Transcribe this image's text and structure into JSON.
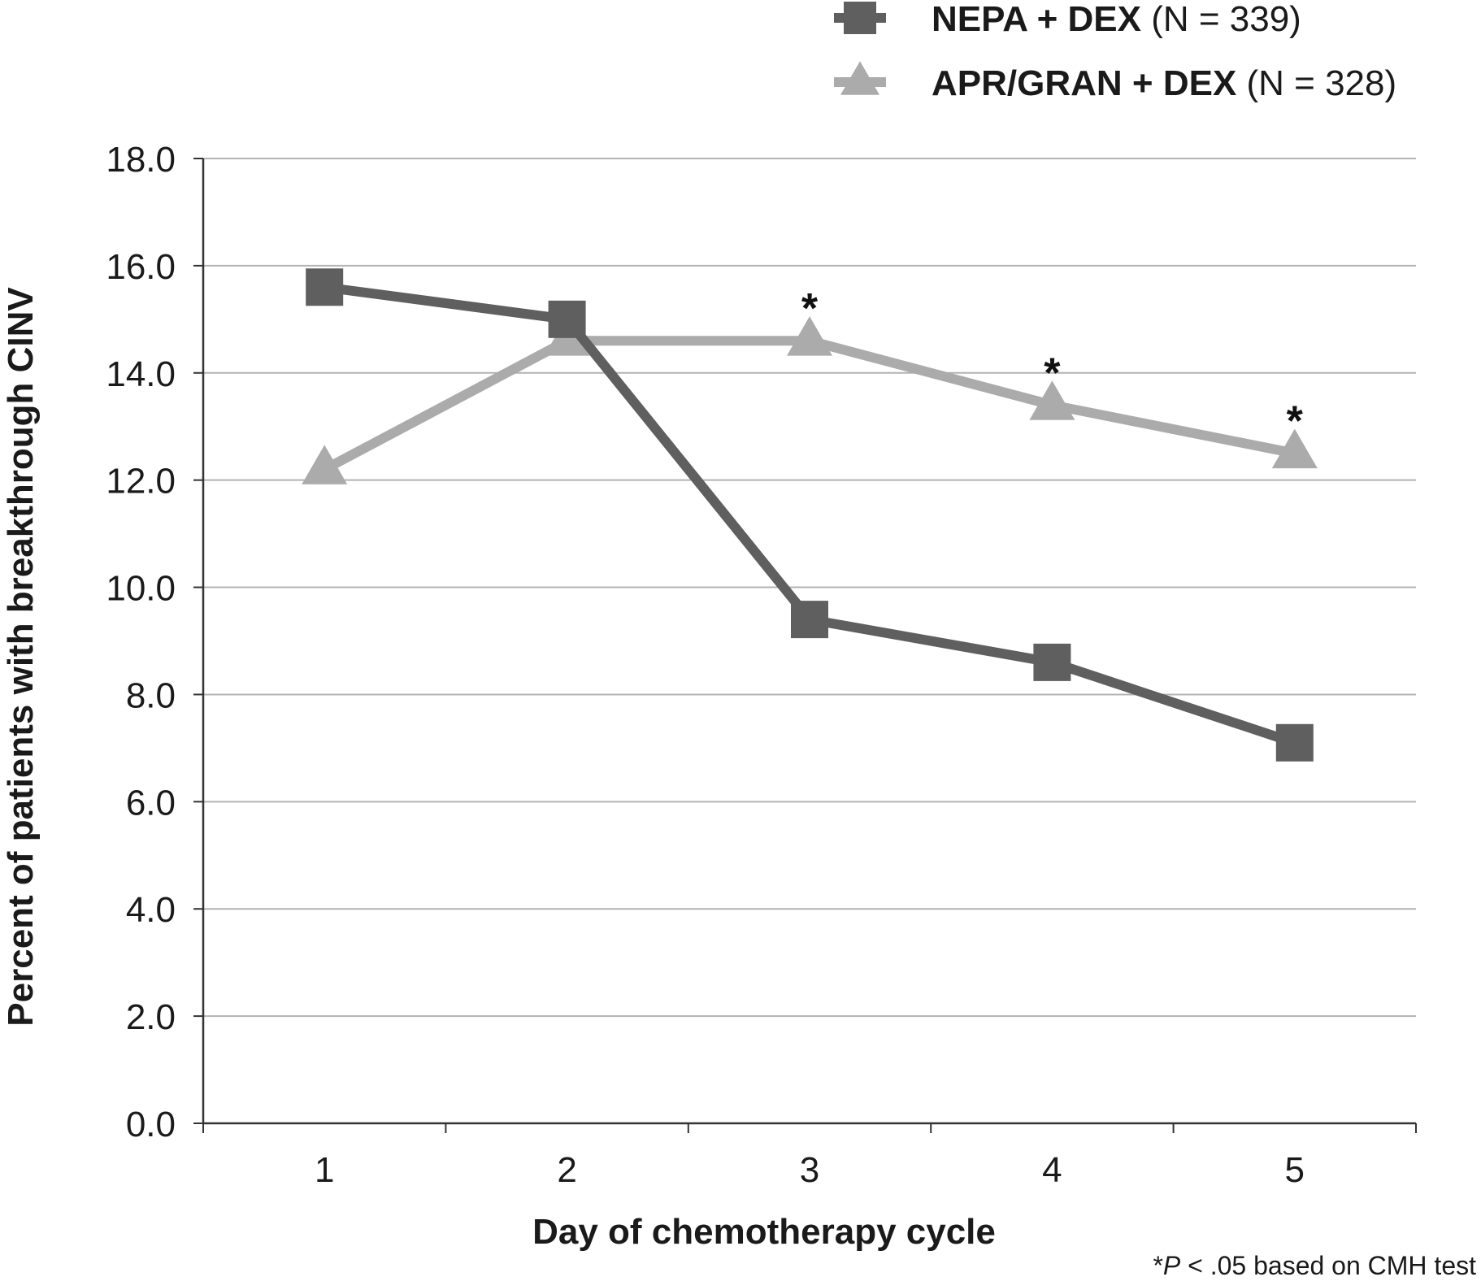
{
  "chart_data": {
    "type": "line",
    "title": "",
    "xlabel": "Day of chemotherapy cycle",
    "ylabel": "Percent of patients with breakthrough CINV",
    "ylim": [
      0,
      18
    ],
    "yticks": [
      "0.0",
      "2.0",
      "4.0",
      "6.0",
      "8.0",
      "10.0",
      "12.0",
      "14.0",
      "16.0",
      "18.0"
    ],
    "categories": [
      "1",
      "2",
      "3",
      "4",
      "5"
    ],
    "grid": "horizontal",
    "legend_position": "top-right",
    "series": [
      {
        "name": "NEPA + DEX",
        "name_suffix": "(N = 339)",
        "marker": "square",
        "color": "#5f5f5f",
        "values": [
          15.6,
          15.0,
          9.4,
          8.6,
          7.1
        ]
      },
      {
        "name": "APR/GRAN + DEX",
        "name_suffix": "(N = 328)",
        "marker": "triangle",
        "color": "#ababab",
        "values": [
          12.2,
          14.6,
          14.6,
          13.4,
          12.5
        ]
      }
    ],
    "annotations": [
      {
        "category": "3",
        "text": "*"
      },
      {
        "category": "4",
        "text": "*"
      },
      {
        "category": "5",
        "text": "*"
      }
    ],
    "footnote": {
      "prefix": "*",
      "p": "P",
      "rest": " < .05 based on CMH test"
    }
  }
}
